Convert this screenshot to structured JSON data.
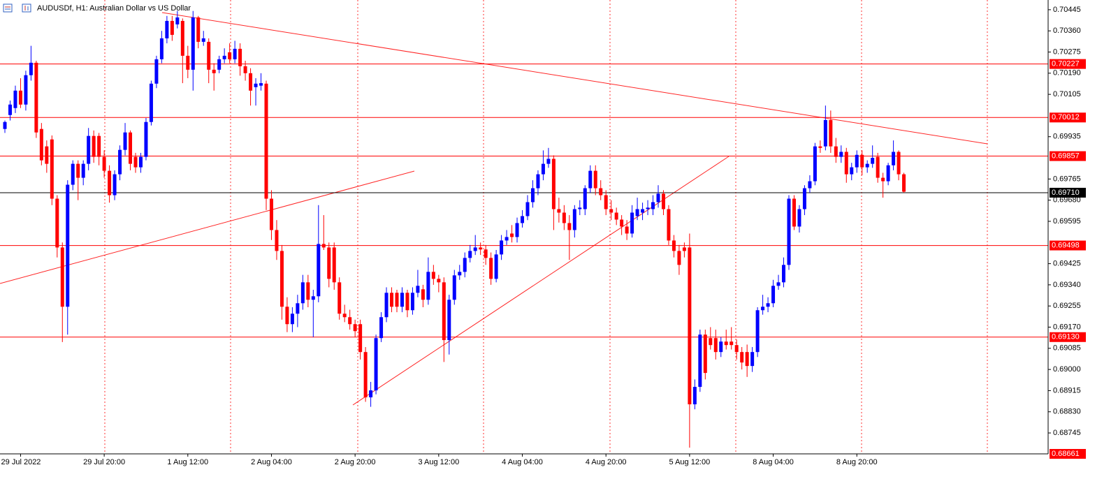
{
  "chart_data": {
    "type": "candlestick",
    "title": "AUDUSDf, H1:  Australian Dollar vs US Dollar",
    "up_color": "#0000ff",
    "down_color": "#ff0000",
    "ylim": [
      0.68661,
      0.70484
    ],
    "yticks": [
      0.70445,
      {
        "value": 0.7036,
        "label": "0.70360"
      },
      0.70275,
      {
        "value": 0.7019,
        "label": "0.70190"
      },
      0.70105,
      0.69935,
      0.69765,
      {
        "value": 0.6968,
        "label": "0.69680"
      },
      0.69595,
      0.69425,
      {
        "value": 0.6934,
        "label": "0.69340"
      },
      0.69255,
      {
        "value": 0.6917,
        "label": "0.69170"
      },
      0.69085,
      {
        "value": 0.69,
        "label": "0.69000"
      },
      0.68915,
      {
        "value": 0.6883,
        "label": "0.68830"
      },
      0.68745
    ],
    "levels": [
      {
        "value": 0.70227,
        "color": "#ff0000"
      },
      {
        "value": 0.70012,
        "color": "#ff0000"
      },
      {
        "value": 0.69857,
        "color": "#ff0000"
      },
      {
        "value": 0.6971,
        "label": "0.69710",
        "color": "#000000"
      },
      {
        "value": 0.69498,
        "color": "#ff0000"
      },
      {
        "value": 0.6913,
        "label": "0.69130",
        "color": "#ff0000"
      },
      {
        "value": 0.68661,
        "color": "#ff0000"
      }
    ],
    "categories": [
      null,
      null,
      null,
      "29 Jul 2022",
      null,
      null,
      null,
      null,
      null,
      null,
      null,
      null,
      null,
      null,
      null,
      null,
      null,
      null,
      null,
      "29 Jul 20:00",
      null,
      null,
      null,
      null,
      null,
      null,
      null,
      null,
      null,
      null,
      null,
      null,
      null,
      null,
      null,
      "1 Aug 12:00",
      null,
      null,
      null,
      null,
      null,
      null,
      null,
      null,
      null,
      null,
      null,
      null,
      null,
      null,
      null,
      "2 Aug 04:00",
      null,
      null,
      null,
      null,
      null,
      null,
      null,
      null,
      null,
      null,
      null,
      null,
      null,
      null,
      null,
      "2 Aug 20:00",
      null,
      null,
      null,
      null,
      null,
      null,
      null,
      null,
      null,
      null,
      null,
      null,
      null,
      null,
      null,
      "3 Aug 12:00",
      null,
      null,
      null,
      null,
      null,
      null,
      null,
      null,
      null,
      null,
      null,
      null,
      null,
      null,
      null,
      "4 Aug 04:00",
      null,
      null,
      null,
      null,
      null,
      null,
      null,
      null,
      null,
      null,
      null,
      null,
      null,
      null,
      null,
      "4 Aug 20:00",
      null,
      null,
      null,
      null,
      null,
      null,
      null,
      null,
      null,
      null,
      null,
      null,
      null,
      null,
      null,
      "5 Aug 12:00",
      null,
      null,
      null,
      null,
      null,
      null,
      null,
      null,
      null,
      null,
      null,
      null,
      null,
      null,
      null,
      "8 Aug 04:00",
      null,
      null,
      null,
      null,
      null,
      null,
      null,
      null,
      null,
      null,
      null,
      null,
      null,
      null,
      null,
      "8 Aug 20:00",
      null,
      null,
      null,
      null,
      null,
      null,
      null,
      null,
      null
    ],
    "candles": [
      [
        0.69966,
        0.7,
        0.6995,
        0.69994
      ],
      [
        0.70022,
        0.7008,
        0.7,
        0.70064
      ],
      [
        0.7005,
        0.7014,
        0.7003,
        0.7012
      ],
      [
        0.7012,
        0.7017,
        0.7005,
        0.70064
      ],
      [
        0.70064,
        0.702,
        0.7004,
        0.70182
      ],
      [
        0.70182,
        0.703,
        0.7016,
        0.70232
      ],
      [
        0.70232,
        0.7024,
        0.6993,
        0.69952
      ],
      [
        0.69966,
        0.6999,
        0.6982,
        0.6984
      ],
      [
        0.69896,
        0.6992,
        0.6979,
        0.69826
      ],
      [
        0.69924,
        0.6994,
        0.6966,
        0.69686
      ],
      [
        0.69686,
        0.697,
        0.6945,
        0.6949
      ],
      [
        0.6949,
        0.6951,
        0.6911,
        0.69252
      ],
      [
        0.69252,
        0.6976,
        0.6914,
        0.69742
      ],
      [
        0.69742,
        0.6984,
        0.6972,
        0.69826
      ],
      [
        0.69826,
        0.6984,
        0.6968,
        0.6977
      ],
      [
        0.6977,
        0.6984,
        0.6974,
        0.69826
      ],
      [
        0.69826,
        0.6997,
        0.698,
        0.69938
      ],
      [
        0.69938,
        0.6996,
        0.6983,
        0.69854
      ],
      [
        0.69938,
        0.6995,
        0.6982,
        0.69854
      ],
      [
        0.69854,
        0.6988,
        0.6977,
        0.69798
      ],
      [
        0.69798,
        0.6982,
        0.6967,
        0.697
      ],
      [
        0.697,
        0.698,
        0.6968,
        0.69784
      ],
      [
        0.69784,
        0.699,
        0.6976,
        0.69882
      ],
      [
        0.69882,
        0.6999,
        0.6986,
        0.69952
      ],
      [
        0.69952,
        0.6996,
        0.698,
        0.69826
      ],
      [
        0.69854,
        0.6987,
        0.6979,
        0.69812
      ],
      [
        0.69812,
        0.6987,
        0.6979,
        0.69854
      ],
      [
        0.69854,
        0.7001,
        0.6984,
        0.69994
      ],
      [
        0.69994,
        0.7016,
        0.6998,
        0.70148
      ],
      [
        0.70148,
        0.7026,
        0.7013,
        0.70246
      ],
      [
        0.70246,
        0.7036,
        0.7023,
        0.7033
      ],
      [
        0.7033,
        0.7042,
        0.7031,
        0.704
      ],
      [
        0.704,
        0.7042,
        0.7032,
        0.70344
      ],
      [
        0.70386,
        0.7044,
        0.7037,
        0.70414
      ],
      [
        0.704,
        0.7041,
        0.7015,
        0.7026
      ],
      [
        0.7026,
        0.703,
        0.7017,
        0.70204
      ],
      [
        0.70204,
        0.7044,
        0.7012,
        0.70414
      ],
      [
        0.70414,
        0.7042,
        0.7029,
        0.70316
      ],
      [
        0.70316,
        0.7036,
        0.703,
        0.7033
      ],
      [
        0.70316,
        0.7033,
        0.7015,
        0.70204
      ],
      [
        0.70204,
        0.7023,
        0.7012,
        0.7019
      ],
      [
        0.70204,
        0.7026,
        0.7019,
        0.70246
      ],
      [
        0.70246,
        0.7029,
        0.7023,
        0.7026
      ],
      [
        0.70274,
        0.7031,
        0.7023,
        0.70246
      ],
      [
        0.70246,
        0.7032,
        0.7023,
        0.70288
      ],
      [
        0.70288,
        0.7031,
        0.7018,
        0.70218
      ],
      [
        0.70218,
        0.7024,
        0.7016,
        0.7019
      ],
      [
        0.7019,
        0.7021,
        0.7006,
        0.7012
      ],
      [
        0.70134,
        0.7017,
        0.7006,
        0.70148
      ],
      [
        0.7014,
        0.7019,
        0.7012,
        0.7015
      ],
      [
        0.70148,
        0.7016,
        0.6964,
        0.69686
      ],
      [
        0.69686,
        0.6972,
        0.6952,
        0.6956
      ],
      [
        0.6956,
        0.696,
        0.6944,
        0.69476
      ],
      [
        0.69476,
        0.695,
        0.692,
        0.69252
      ],
      [
        0.69252,
        0.6929,
        0.6915,
        0.69182
      ],
      [
        0.69182,
        0.6925,
        0.6915,
        0.69224
      ],
      [
        0.69224,
        0.693,
        0.6917,
        0.69266
      ],
      [
        0.69266,
        0.6938,
        0.6924,
        0.6935
      ],
      [
        0.6935,
        0.6938,
        0.6925,
        0.6928
      ],
      [
        0.6928,
        0.6932,
        0.6913,
        0.69294
      ],
      [
        0.69294,
        0.6966,
        0.6927,
        0.69504
      ],
      [
        0.69504,
        0.6962,
        0.6948,
        0.6949
      ],
      [
        0.6949,
        0.6951,
        0.6933,
        0.69364
      ],
      [
        0.6949,
        0.6951,
        0.6932,
        0.6935
      ],
      [
        0.6935,
        0.6937,
        0.692,
        0.69224
      ],
      [
        0.69224,
        0.6926,
        0.6919,
        0.6921
      ],
      [
        0.6921,
        0.6924,
        0.6916,
        0.69182
      ],
      [
        0.69182,
        0.692,
        0.6913,
        0.69154
      ],
      [
        0.69182,
        0.692,
        0.6904,
        0.6907
      ],
      [
        0.6907,
        0.6909,
        0.6887,
        0.68888
      ],
      [
        0.68888,
        0.6895,
        0.6885,
        0.68916
      ],
      [
        0.68916,
        0.6914,
        0.689,
        0.69126
      ],
      [
        0.69126,
        0.6923,
        0.6911,
        0.6921
      ],
      [
        0.6921,
        0.6933,
        0.6919,
        0.69308
      ],
      [
        0.69308,
        0.6933,
        0.6923,
        0.69252
      ],
      [
        0.69308,
        0.6932,
        0.6923,
        0.69252
      ],
      [
        0.69252,
        0.6933,
        0.6923,
        0.69308
      ],
      [
        0.69308,
        0.6932,
        0.6921,
        0.69238
      ],
      [
        0.69238,
        0.6933,
        0.6922,
        0.69308
      ],
      [
        0.69308,
        0.694,
        0.6929,
        0.69336
      ],
      [
        0.69322,
        0.6934,
        0.6925,
        0.6928
      ],
      [
        0.6928,
        0.6945,
        0.6926,
        0.69392
      ],
      [
        0.69392,
        0.6942,
        0.6934,
        0.69364
      ],
      [
        0.69364,
        0.6938,
        0.6931,
        0.6935
      ],
      [
        0.6935,
        0.6937,
        0.6903,
        0.69118
      ],
      [
        0.69118,
        0.693,
        0.6906,
        0.6928
      ],
      [
        0.6928,
        0.694,
        0.6926,
        0.69378
      ],
      [
        0.69378,
        0.6942,
        0.6936,
        0.69392
      ],
      [
        0.69392,
        0.6947,
        0.6937,
        0.69448
      ],
      [
        0.69448,
        0.695,
        0.6943,
        0.69476
      ],
      [
        0.69476,
        0.6954,
        0.6946,
        0.6949
      ],
      [
        0.6949,
        0.6951,
        0.6946,
        0.69482
      ],
      [
        0.69482,
        0.695,
        0.6942,
        0.69448
      ],
      [
        0.69448,
        0.6947,
        0.6934,
        0.69364
      ],
      [
        0.69364,
        0.6948,
        0.6935,
        0.69462
      ],
      [
        0.69462,
        0.6954,
        0.6944,
        0.69518
      ],
      [
        0.69518,
        0.6956,
        0.695,
        0.69532
      ],
      [
        0.69546,
        0.6958,
        0.6951,
        0.69532
      ],
      [
        0.69532,
        0.6961,
        0.6951,
        0.69588
      ],
      [
        0.69588,
        0.6964,
        0.6957,
        0.69616
      ],
      [
        0.69616,
        0.697,
        0.696,
        0.69672
      ],
      [
        0.69672,
        0.6976,
        0.6965,
        0.69728
      ],
      [
        0.69728,
        0.698,
        0.697,
        0.69784
      ],
      [
        0.69784,
        0.6988,
        0.6976,
        0.69826
      ],
      [
        0.69826,
        0.6989,
        0.6981,
        0.69846
      ],
      [
        0.69846,
        0.6986,
        0.6956,
        0.69644
      ],
      [
        0.69644,
        0.6969,
        0.6959,
        0.6963
      ],
      [
        0.6963,
        0.6966,
        0.6956,
        0.69588
      ],
      [
        0.69588,
        0.6962,
        0.6944,
        0.6956
      ],
      [
        0.6956,
        0.6966,
        0.6953,
        0.69644
      ],
      [
        0.69644,
        0.6968,
        0.6962,
        0.6965
      ],
      [
        0.69644,
        0.6974,
        0.6962,
        0.69728
      ],
      [
        0.69728,
        0.6982,
        0.6971,
        0.69798
      ],
      [
        0.69798,
        0.6982,
        0.697,
        0.69728
      ],
      [
        0.69728,
        0.6976,
        0.6968,
        0.697
      ],
      [
        0.697,
        0.6972,
        0.6962,
        0.69644
      ],
      [
        0.69644,
        0.6968,
        0.696,
        0.6963
      ],
      [
        0.6963,
        0.6965,
        0.6958,
        0.69602
      ],
      [
        0.69602,
        0.6962,
        0.6954,
        0.69574
      ],
      [
        0.69574,
        0.696,
        0.6952,
        0.69546
      ],
      [
        0.69546,
        0.6966,
        0.6953,
        0.6963
      ],
      [
        0.69616,
        0.6969,
        0.696,
        0.69644
      ],
      [
        0.6963,
        0.6967,
        0.696,
        0.69644
      ],
      [
        0.69644,
        0.6968,
        0.6962,
        0.6965
      ],
      [
        0.69644,
        0.697,
        0.6962,
        0.69672
      ],
      [
        0.69672,
        0.6974,
        0.6965,
        0.69706
      ],
      [
        0.69706,
        0.6972,
        0.6962,
        0.69644
      ],
      [
        0.69644,
        0.6966,
        0.695,
        0.69518
      ],
      [
        0.69518,
        0.6954,
        0.6945,
        0.69476
      ],
      [
        0.69476,
        0.695,
        0.6938,
        0.6942
      ],
      [
        0.6949,
        0.6951,
        0.6945,
        0.69476
      ],
      [
        0.6949,
        0.69546,
        0.68686,
        0.6886
      ],
      [
        0.6886,
        0.6896,
        0.6884,
        0.6893
      ],
      [
        0.6893,
        0.6916,
        0.6891,
        0.6914
      ],
      [
        0.6914,
        0.6916,
        0.6896,
        0.68986
      ],
      [
        0.69126,
        0.6917,
        0.6908,
        0.69098
      ],
      [
        0.69126,
        0.6916,
        0.6904,
        0.6907
      ],
      [
        0.6907,
        0.6913,
        0.6905,
        0.69112
      ],
      [
        0.69112,
        0.6916,
        0.6908,
        0.69098
      ],
      [
        0.69112,
        0.6917,
        0.6908,
        0.69098
      ],
      [
        0.69098,
        0.6912,
        0.6904,
        0.6907
      ],
      [
        0.6907,
        0.6909,
        0.69,
        0.69028
      ],
      [
        0.6907,
        0.691,
        0.6897,
        0.69014
      ],
      [
        0.69014,
        0.6909,
        0.6899,
        0.6907
      ],
      [
        0.6907,
        0.6925,
        0.6905,
        0.69238
      ],
      [
        0.69238,
        0.693,
        0.6922,
        0.69252
      ],
      [
        0.69252,
        0.6929,
        0.6923,
        0.69266
      ],
      [
        0.69266,
        0.6936,
        0.6925,
        0.69336
      ],
      [
        0.69336,
        0.6938,
        0.6932,
        0.6935
      ],
      [
        0.6935,
        0.6945,
        0.6933,
        0.6942
      ],
      [
        0.6942,
        0.697,
        0.694,
        0.69686
      ],
      [
        0.69686,
        0.697,
        0.6956,
        0.69574
      ],
      [
        0.69574,
        0.6966,
        0.6955,
        0.69644
      ],
      [
        0.69644,
        0.6974,
        0.6962,
        0.69728
      ],
      [
        0.69728,
        0.6978,
        0.6971,
        0.69756
      ],
      [
        0.69756,
        0.6991,
        0.6974,
        0.69896
      ],
      [
        0.69896,
        0.6992,
        0.6987,
        0.6989
      ],
      [
        0.69896,
        0.7006,
        0.6988,
        0.70002
      ],
      [
        0.70002,
        0.7004,
        0.6987,
        0.69896
      ],
      [
        0.69896,
        0.6993,
        0.6983,
        0.69854
      ],
      [
        0.69854,
        0.699,
        0.6983,
        0.69874
      ],
      [
        0.69874,
        0.6989,
        0.6975,
        0.69784
      ],
      [
        0.69784,
        0.6983,
        0.6976,
        0.69812
      ],
      [
        0.69812,
        0.6988,
        0.6979,
        0.69862
      ],
      [
        0.69862,
        0.6988,
        0.6978,
        0.69812
      ],
      [
        0.69812,
        0.6984,
        0.6979,
        0.69826
      ],
      [
        0.69826,
        0.699,
        0.6981,
        0.6985
      ],
      [
        0.69854,
        0.6987,
        0.6975,
        0.6977
      ],
      [
        0.6977,
        0.6979,
        0.6969,
        0.69756
      ],
      [
        0.69756,
        0.6983,
        0.6974,
        0.6982
      ],
      [
        0.6982,
        0.6992,
        0.698,
        0.69874
      ],
      [
        0.69874,
        0.6988,
        0.6976,
        0.69784
      ],
      [
        0.69784,
        0.6979,
        0.6971,
        0.69714
      ]
    ]
  }
}
